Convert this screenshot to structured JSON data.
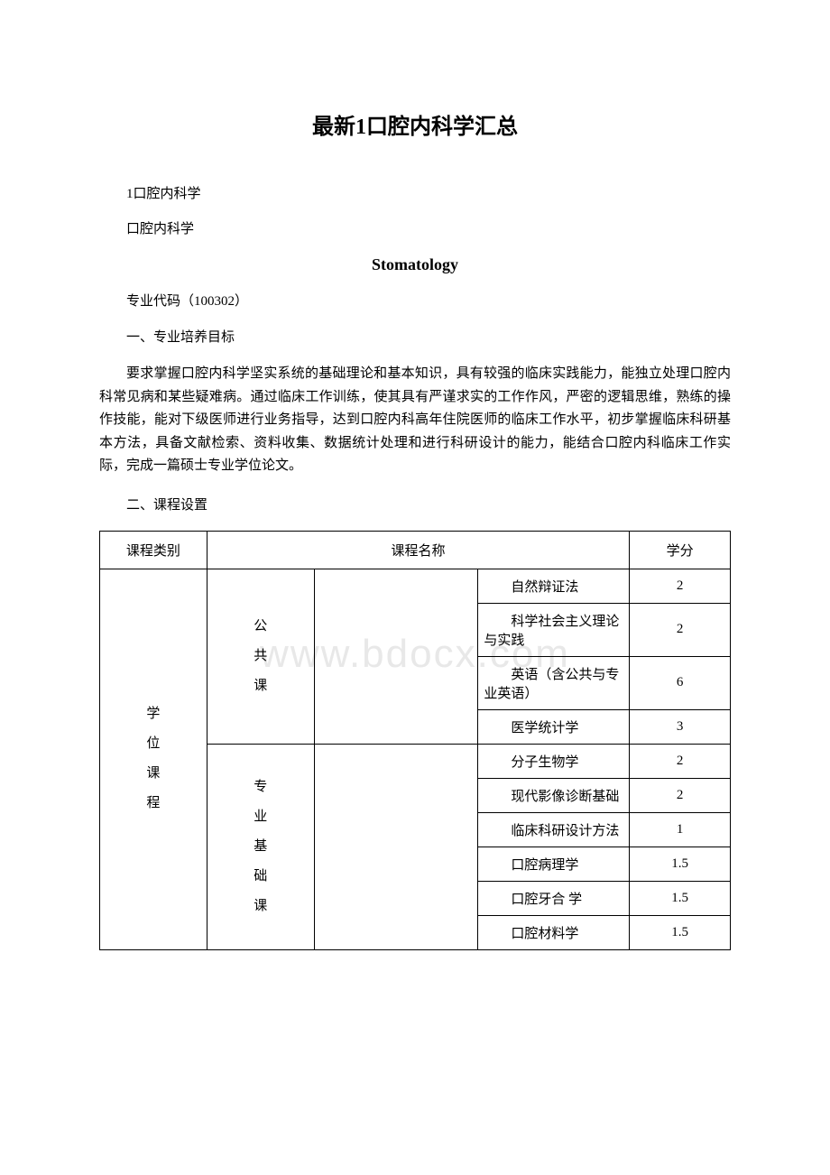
{
  "title": "最新1口腔内科学汇总",
  "subtitle1": "1口腔内科学",
  "subtitle2": "口腔内科学",
  "english_title": "Stomatology",
  "code_line": "专业代码（100302）",
  "section1_heading": "一、专业培养目标",
  "section1_body": "要求掌握口腔内科学坚实系统的基础理论和基本知识，具有较强的临床实践能力，能独立处理口腔内科常见病和某些疑难病。通过临床工作训练，使其具有严谨求实的工作作风，严密的逻辑思维，熟练的操作技能，能对下级医师进行业务指导，达到口腔内科高年住院医师的临床工作水平，初步掌握临床科研基本方法，具备文献检索、资料收集、数据统计处理和进行科研设计的能力，能结合口腔内科临床工作实际，完成一篇硕士专业学位论文。",
  "section2_heading": "二、课程设置",
  "watermark": "www.bdocx.com",
  "table": {
    "headers": {
      "category": "课程类别",
      "name": "课程名称",
      "credit": "学分"
    },
    "category_main": "学\n位\n课\n程",
    "group1_label": "公\n共\n课",
    "group2_label": "专\n业\n基\n础\n课",
    "rows": [
      {
        "name": "自然辩证法",
        "credit": "2"
      },
      {
        "name": "科学社会主义理论与实践",
        "credit": "2"
      },
      {
        "name": "英语（含公共与专业英语）",
        "credit": "6"
      },
      {
        "name": "医学统计学",
        "credit": "3"
      },
      {
        "name": "分子生物学",
        "credit": "2"
      },
      {
        "name": "现代影像诊断基础",
        "credit": "2"
      },
      {
        "name": "临床科研设计方法",
        "credit": "1"
      },
      {
        "name": "口腔病理学",
        "credit": "1.5"
      },
      {
        "name": "口腔牙合 学",
        "credit": "1.5"
      },
      {
        "name": "口腔材料学",
        "credit": "1.5"
      }
    ]
  }
}
